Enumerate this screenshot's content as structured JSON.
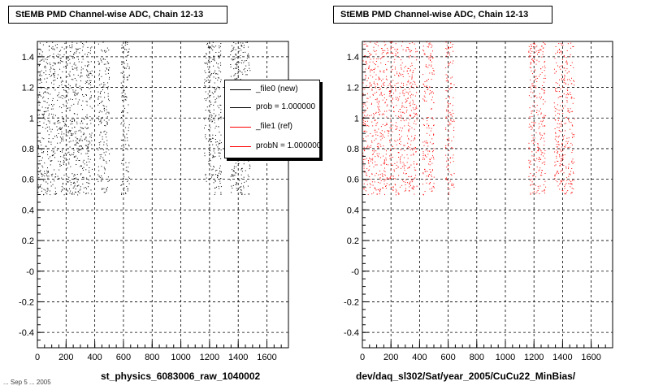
{
  "chart_data": [
    {
      "type": "scatter",
      "title": "StEMB PMD Channel-wise ADC, Chain 12-13",
      "xlabel": "st_physics_6083006_raw_1040002",
      "xlim": [
        0,
        1750
      ],
      "ylim": [
        -0.5,
        1.5
      ],
      "xticks": [
        "0",
        "200",
        "400",
        "600",
        "800",
        "1000",
        "1200",
        "1400",
        "1600"
      ],
      "yticks": [
        "1.4",
        "1.2",
        "1",
        "0.8",
        "0.6",
        "0.4",
        "0.2",
        "-0",
        "-0.2",
        "-0.4"
      ],
      "grid": true,
      "legend_position": "top-right",
      "legend": [
        {
          "label": "_file0 (new)",
          "color": "#000000"
        },
        {
          "label": "prob = 1.000000",
          "color": "#000000"
        },
        {
          "label": "_file1 (ref)",
          "color": "#ff0000"
        },
        {
          "label": "probN = 1.000000",
          "color": "#ff0000"
        }
      ],
      "series": [
        {
          "color": "#000000",
          "y_range": [
            0.5,
            1.5
          ],
          "x_bands": [
            [
              0,
              380
            ],
            [
              420,
              500
            ],
            [
              580,
              640
            ],
            [
              1160,
              1280
            ],
            [
              1340,
              1480
            ]
          ]
        }
      ]
    },
    {
      "type": "scatter",
      "title": "StEMB PMD Channel-wise ADC, Chain 12-13",
      "xlabel": "dev/daq_sl302/Sat/year_2005/CuCu22_MinBias/",
      "xlim": [
        0,
        1750
      ],
      "ylim": [
        -0.5,
        1.5
      ],
      "xticks": [
        "0",
        "200",
        "400",
        "600",
        "800",
        "1000",
        "1200",
        "1400",
        "1600"
      ],
      "yticks": [
        "1.4",
        "1.2",
        "1",
        "0.8",
        "0.6",
        "0.4",
        "0.2",
        "-0",
        "-0.2",
        "-0.4"
      ],
      "grid": true,
      "series": [
        {
          "color": "#ff0000",
          "y_range": [
            0.5,
            1.5
          ],
          "x_bands": [
            [
              0,
              380
            ],
            [
              420,
              500
            ],
            [
              580,
              640
            ],
            [
              1160,
              1280
            ],
            [
              1340,
              1480
            ]
          ]
        }
      ]
    }
  ],
  "footer_text": "... Sep  5 ... 2005"
}
